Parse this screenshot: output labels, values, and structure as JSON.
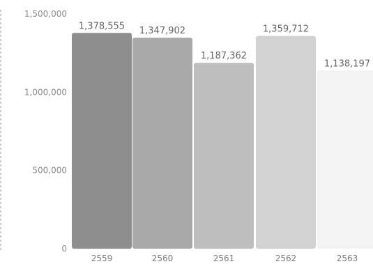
{
  "chart_data": {
    "type": "bar",
    "categories": [
      "2559",
      "2560",
      "2561",
      "2562",
      "2563"
    ],
    "values": [
      1378555,
      1347902,
      1187362,
      1359712,
      1138197
    ],
    "value_labels": [
      "1,378,555",
      "1,347,902",
      "1,187,362",
      "1,359,712",
      "1,138,197"
    ],
    "bar_colors": [
      "#8e8e8e",
      "#a9a9a9",
      "#bebebe",
      "#d2d2d2",
      "#f3f3f3"
    ],
    "y_ticks": [
      {
        "value": 0,
        "label": "0"
      },
      {
        "value": 500000,
        "label": "500,000"
      },
      {
        "value": 1000000,
        "label": "1,000,000"
      },
      {
        "value": 1500000,
        "label": "1,500,000"
      }
    ],
    "ylim": [
      0,
      1500000
    ],
    "title": "",
    "xlabel": "",
    "ylabel": "",
    "grid": false,
    "legend": "none"
  }
}
